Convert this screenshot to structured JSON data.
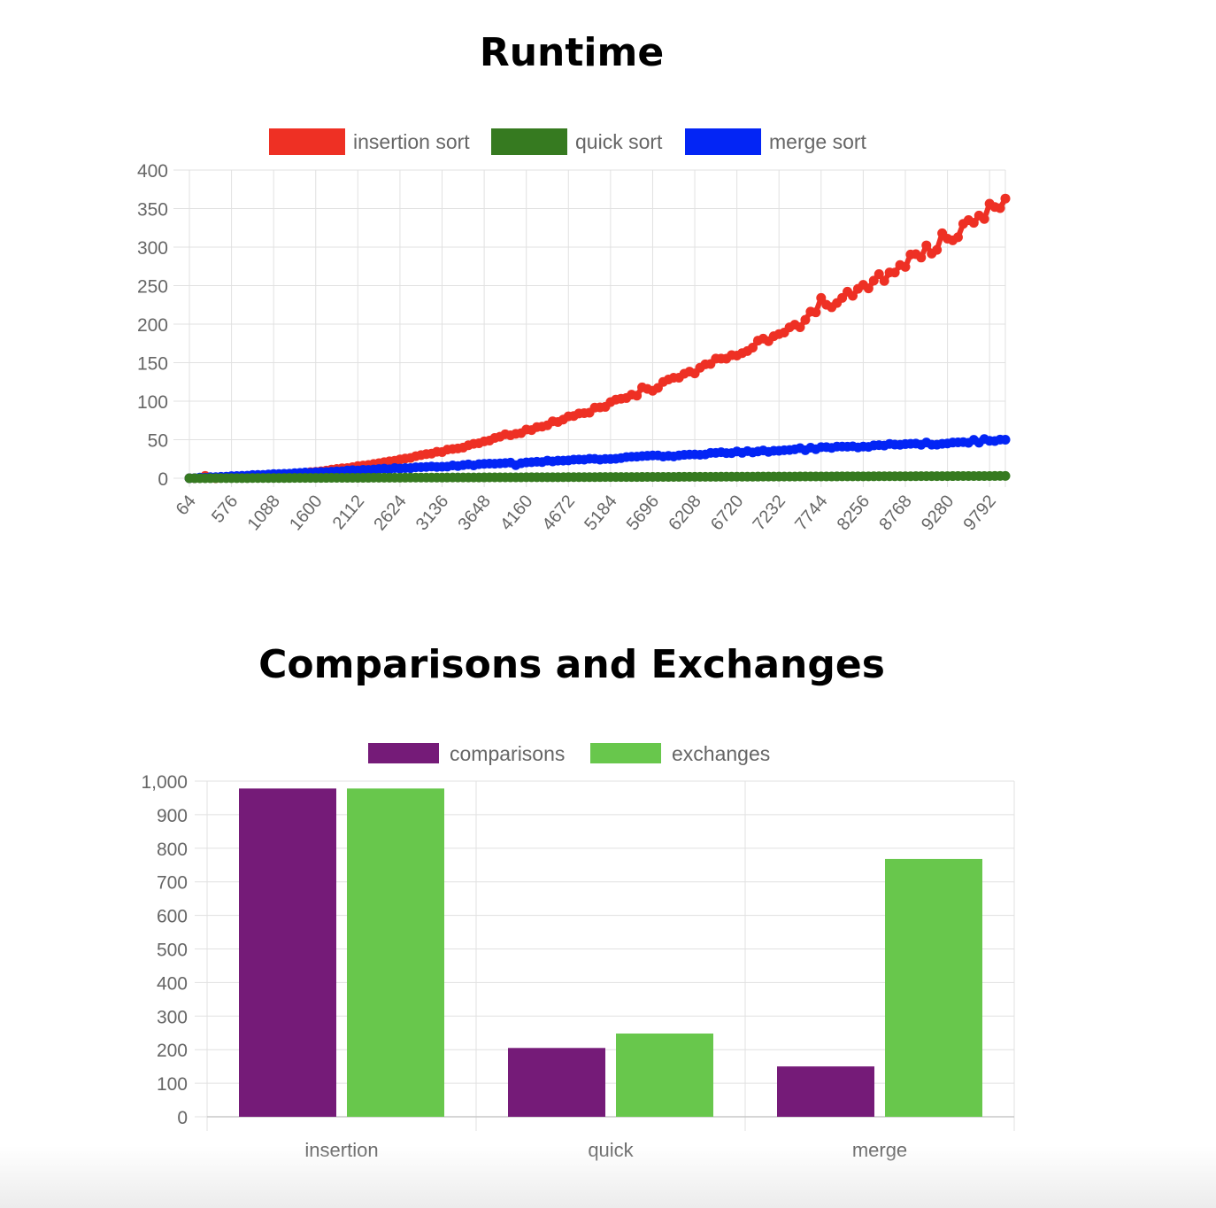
{
  "titles": {
    "runtime": "Runtime",
    "compex": "Comparisons and Exchanges"
  },
  "chart_data": [
    {
      "type": "line",
      "title": "Runtime",
      "xlabel": "",
      "ylabel": "",
      "ylim": [
        0,
        400
      ],
      "yticks": [
        "0",
        "50",
        "100",
        "150",
        "200",
        "250",
        "300",
        "350",
        "400"
      ],
      "x_start": 64,
      "x_step": 64,
      "x_count": 156,
      "x_tick_every": 8,
      "x_tick_labels": [
        "64",
        "576",
        "1088",
        "1600",
        "2112",
        "2624",
        "3136",
        "3648",
        "4160",
        "4672",
        "5184",
        "5696",
        "6208",
        "6720",
        "7232",
        "7744",
        "8256",
        "8768",
        "9280",
        "9792"
      ],
      "legend_position": "top",
      "grid": true,
      "series": [
        {
          "name": "insertion sort",
          "color": "#ee3024",
          "growth": "quadratic",
          "y_first": 0,
          "y_last": 363,
          "marker_points": [
            {
              "x": 256,
              "y": 3
            },
            {
              "x": 3904,
              "y": 57
            },
            {
              "x": 5568,
              "y": 118
            },
            {
              "x": 7488,
              "y": 196
            },
            {
              "x": 7744,
              "y": 234
            },
            {
              "x": 9536,
              "y": 335
            },
            {
              "x": 9856,
              "y": 352
            }
          ]
        },
        {
          "name": "quick sort",
          "color": "#367a20",
          "growth": "linear",
          "y_first": 0,
          "y_last": 3
        },
        {
          "name": "merge sort",
          "color": "#0325f5",
          "growth": "linear",
          "y_first": 0,
          "y_last": 50,
          "marker_points": [
            {
              "x": 4032,
              "y": 17
            },
            {
              "x": 8192,
              "y": 40
            },
            {
              "x": 8896,
              "y": 45
            }
          ]
        }
      ]
    },
    {
      "type": "bar",
      "title": "Comparisons and Exchanges",
      "xlabel": "",
      "ylabel": "",
      "ylim": [
        0,
        1000
      ],
      "yticks": [
        "0",
        "100",
        "200",
        "300",
        "400",
        "500",
        "600",
        "700",
        "800",
        "900",
        "1,000"
      ],
      "categories": [
        "insertion",
        "quick",
        "merge"
      ],
      "legend_position": "top",
      "grid": true,
      "series": [
        {
          "name": "comparisons",
          "color": "#751b78",
          "values": [
            978,
            205,
            150
          ]
        },
        {
          "name": "exchanges",
          "color": "#68c74c",
          "values": [
            978,
            248,
            768
          ]
        }
      ]
    }
  ]
}
